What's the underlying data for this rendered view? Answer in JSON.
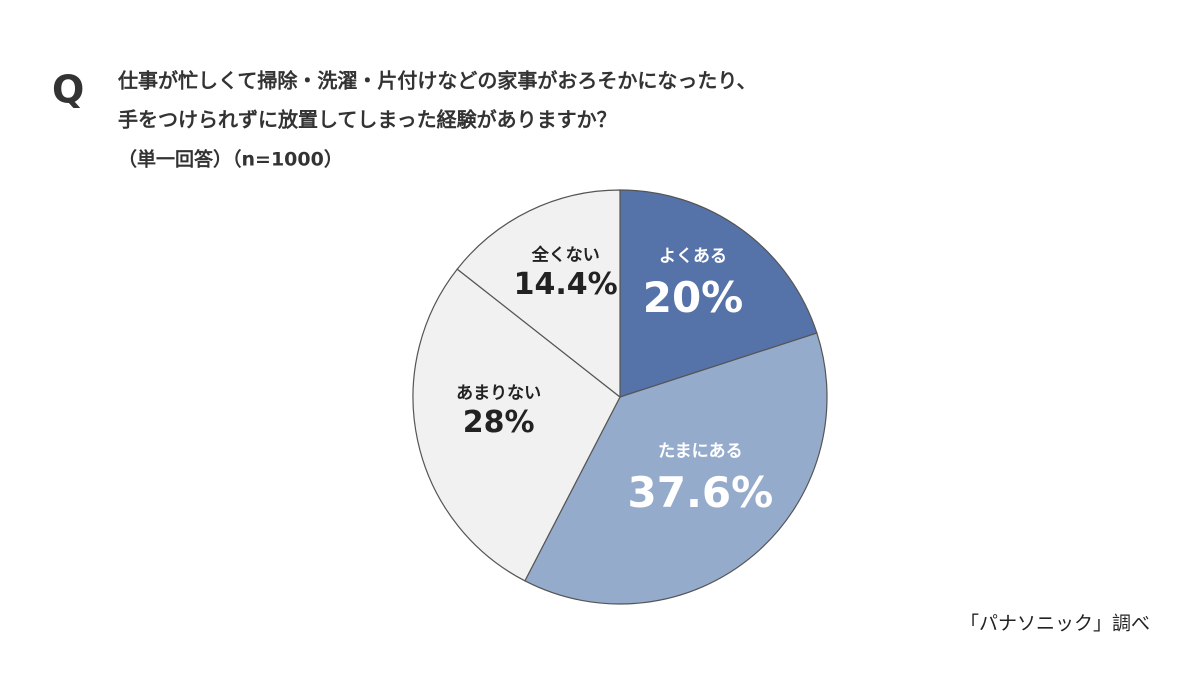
{
  "chart_data": {
    "type": "pie",
    "question_mark": "Q",
    "title": [
      "仕事が忙しくて掃除・洗濯・片付けなどの家事がおろそかになったり、",
      "手をつけられずに放置してしまった経験がありますか？"
    ],
    "subtitle": "（単一回答）（n=1000）",
    "categories": [
      "よくある",
      "たまにある",
      "あまりない",
      "全くない"
    ],
    "values": [
      20,
      37.6,
      28,
      14.4
    ],
    "value_labels": [
      "20%",
      "37.6%",
      "28%",
      "14.4%"
    ],
    "colors": [
      "#5573a8",
      "#95abcc",
      "#f1f1f1",
      "#f1f1f1"
    ],
    "source": "「パナソニック」調べ"
  }
}
